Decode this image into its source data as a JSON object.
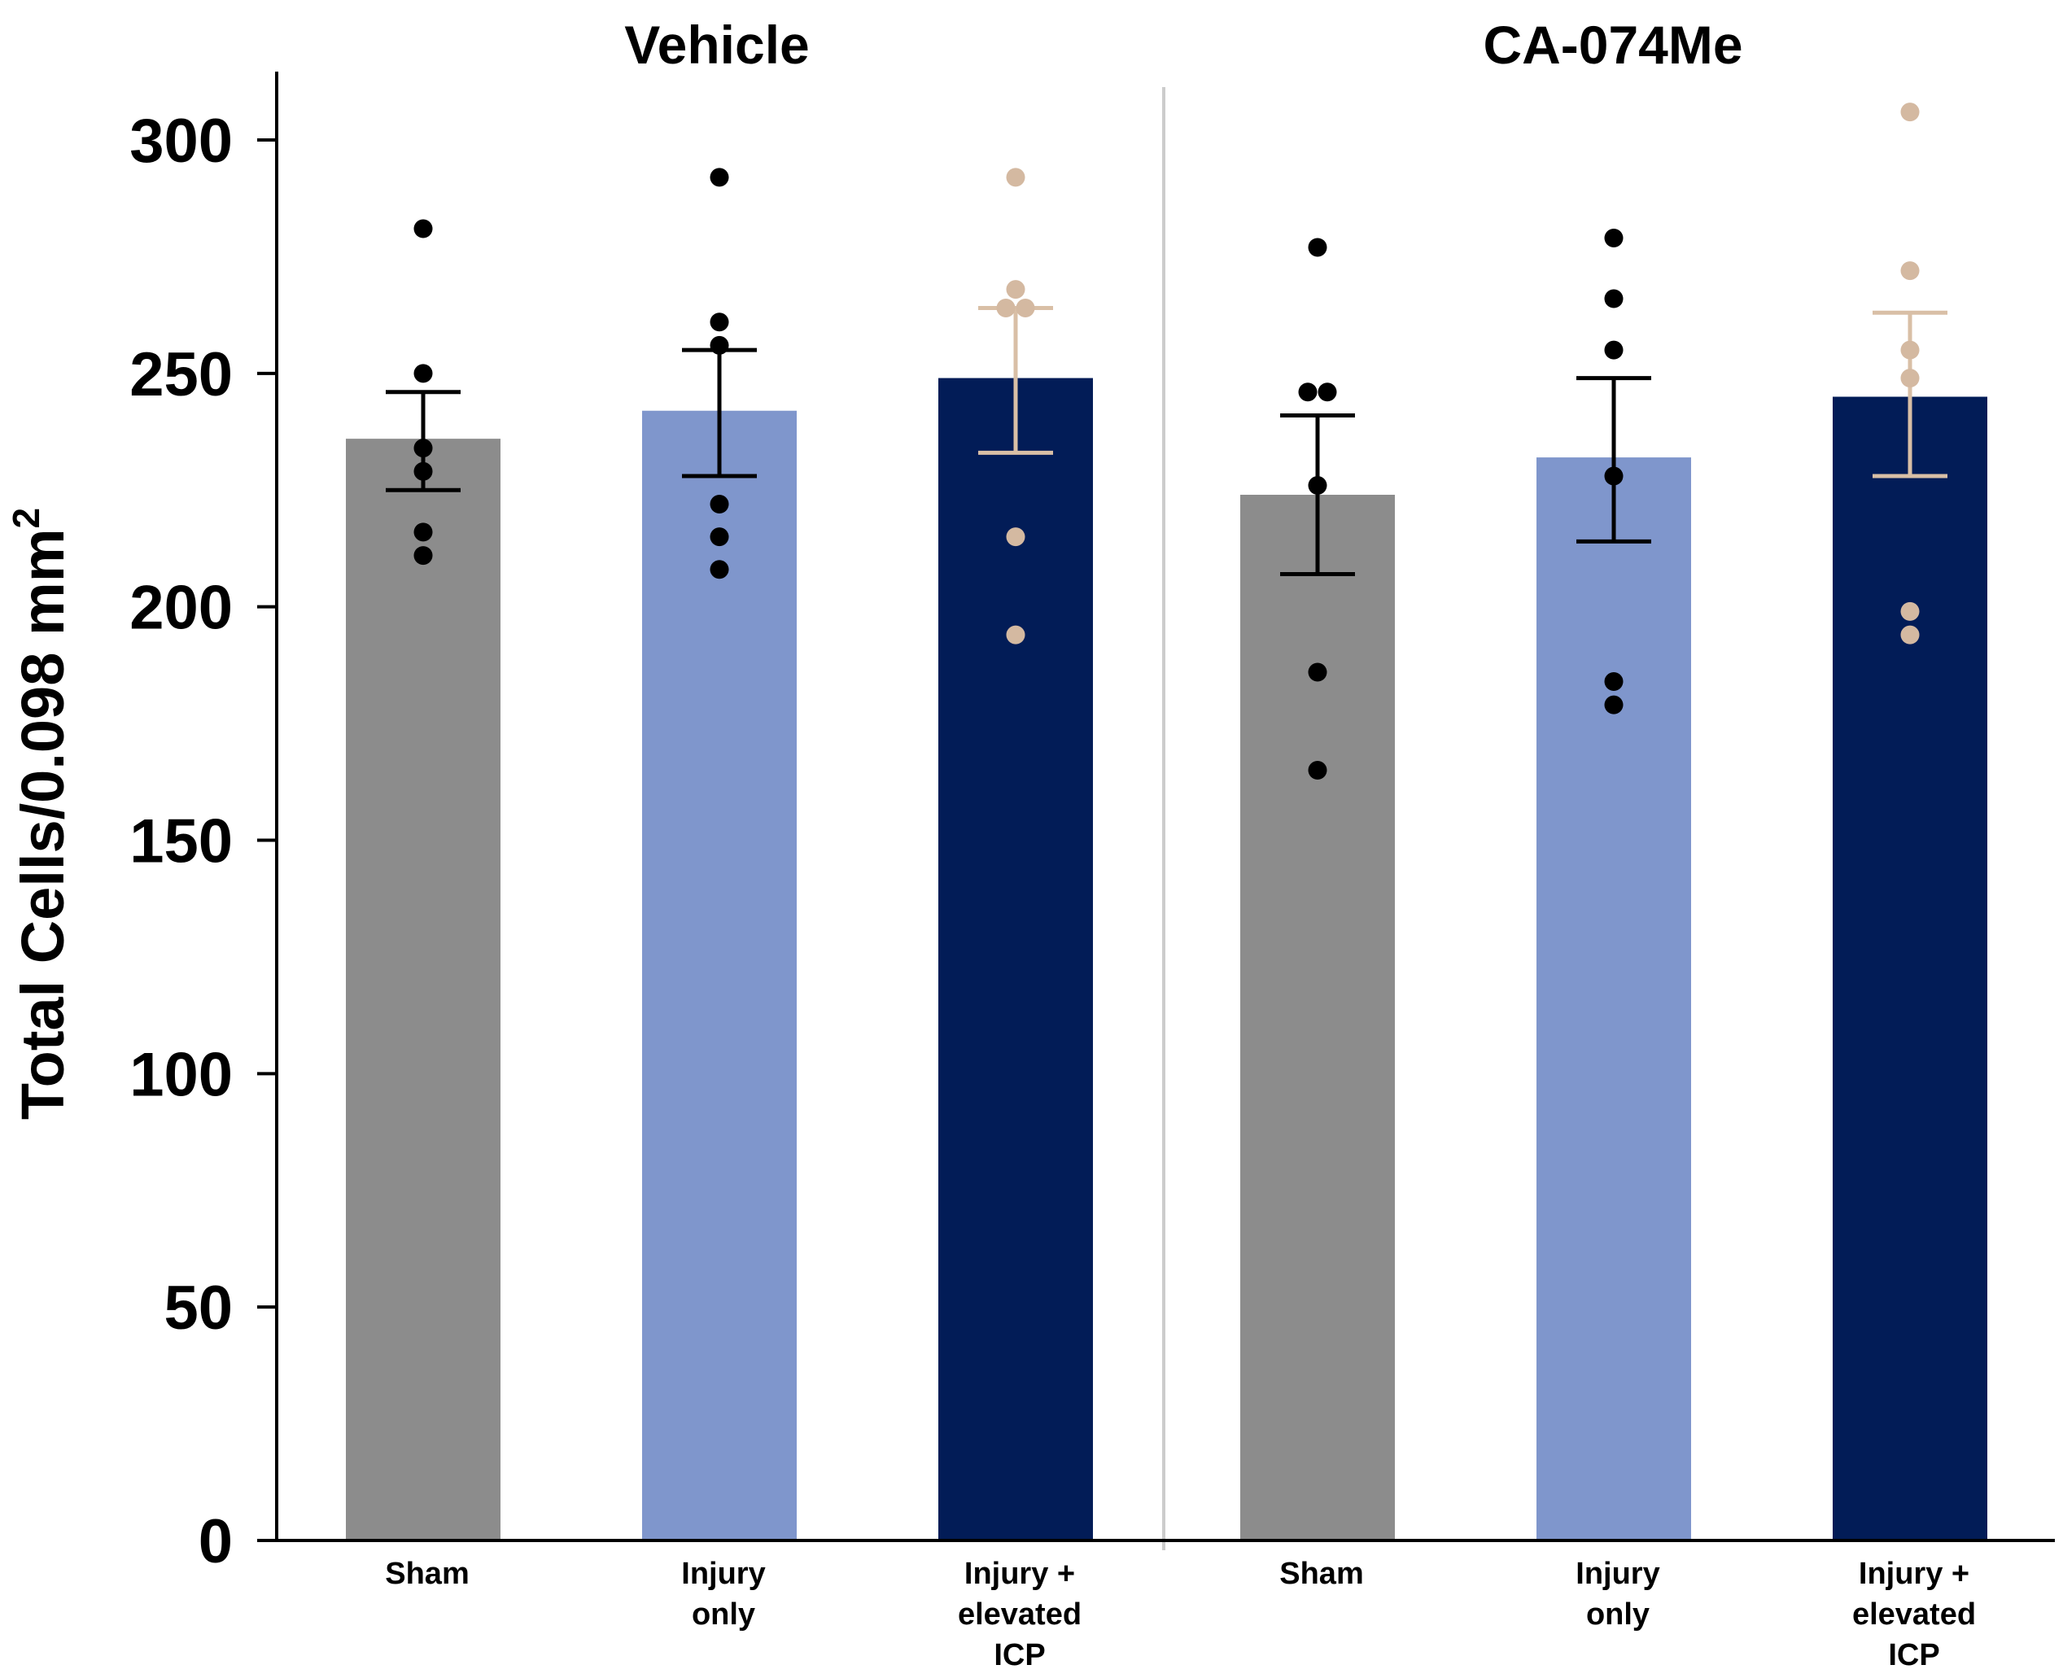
{
  "chart_data": {
    "type": "bar",
    "ylabel": "Total Cells/0.098 mm",
    "ylabel_superscript": "2",
    "ylim": [
      0,
      300
    ],
    "yticks": [
      "0",
      "50",
      "100",
      "150",
      "200",
      "250",
      "300"
    ],
    "groups": [
      {
        "title": "Vehicle",
        "bars": [
          {
            "label_lines": [
              "Sham"
            ],
            "mean": 236,
            "sem_low": 225,
            "sem_high": 246,
            "color": "#8c8c8c",
            "error_color": "#000000",
            "dot_color": "#000000",
            "points": [
              281,
              250,
              234,
              229,
              216,
              211
            ]
          },
          {
            "label_lines": [
              "Injury",
              "only"
            ],
            "mean": 242,
            "sem_low": 228,
            "sem_high": 255,
            "color": "#7f96cc",
            "error_color": "#000000",
            "dot_color": "#000000",
            "points": [
              292,
              261,
              256,
              222,
              215,
              208
            ]
          },
          {
            "label_lines": [
              "Injury +",
              "elevated",
              "ICP"
            ],
            "mean": 249,
            "sem_low": 233,
            "sem_high": 264,
            "color": "#021c57",
            "error_color": "#d9bfa6",
            "dot_color": "#d4b9a1",
            "points": [
              292,
              268,
              264,
              264,
              215,
              194
            ]
          }
        ]
      },
      {
        "title": "CA-074Me",
        "bars": [
          {
            "label_lines": [
              "Sham"
            ],
            "mean": 224,
            "sem_low": 207,
            "sem_high": 241,
            "color": "#8c8c8c",
            "error_color": "#000000",
            "dot_color": "#000000",
            "points": [
              277,
              246,
              246,
              226,
              186,
              165
            ]
          },
          {
            "label_lines": [
              "Injury",
              "only"
            ],
            "mean": 232,
            "sem_low": 214,
            "sem_high": 249,
            "color": "#7f96cc",
            "error_color": "#000000",
            "dot_color": "#000000",
            "points": [
              279,
              266,
              255,
              228,
              184,
              179
            ]
          },
          {
            "label_lines": [
              "Injury +",
              "elevated",
              "ICP"
            ],
            "mean": 245,
            "sem_low": 228,
            "sem_high": 263,
            "color": "#021c57",
            "error_color": "#d9bfa6",
            "dot_color": "#d4b9a1",
            "points": [
              306,
              272,
              255,
              249,
              199,
              194
            ]
          }
        ]
      }
    ]
  }
}
